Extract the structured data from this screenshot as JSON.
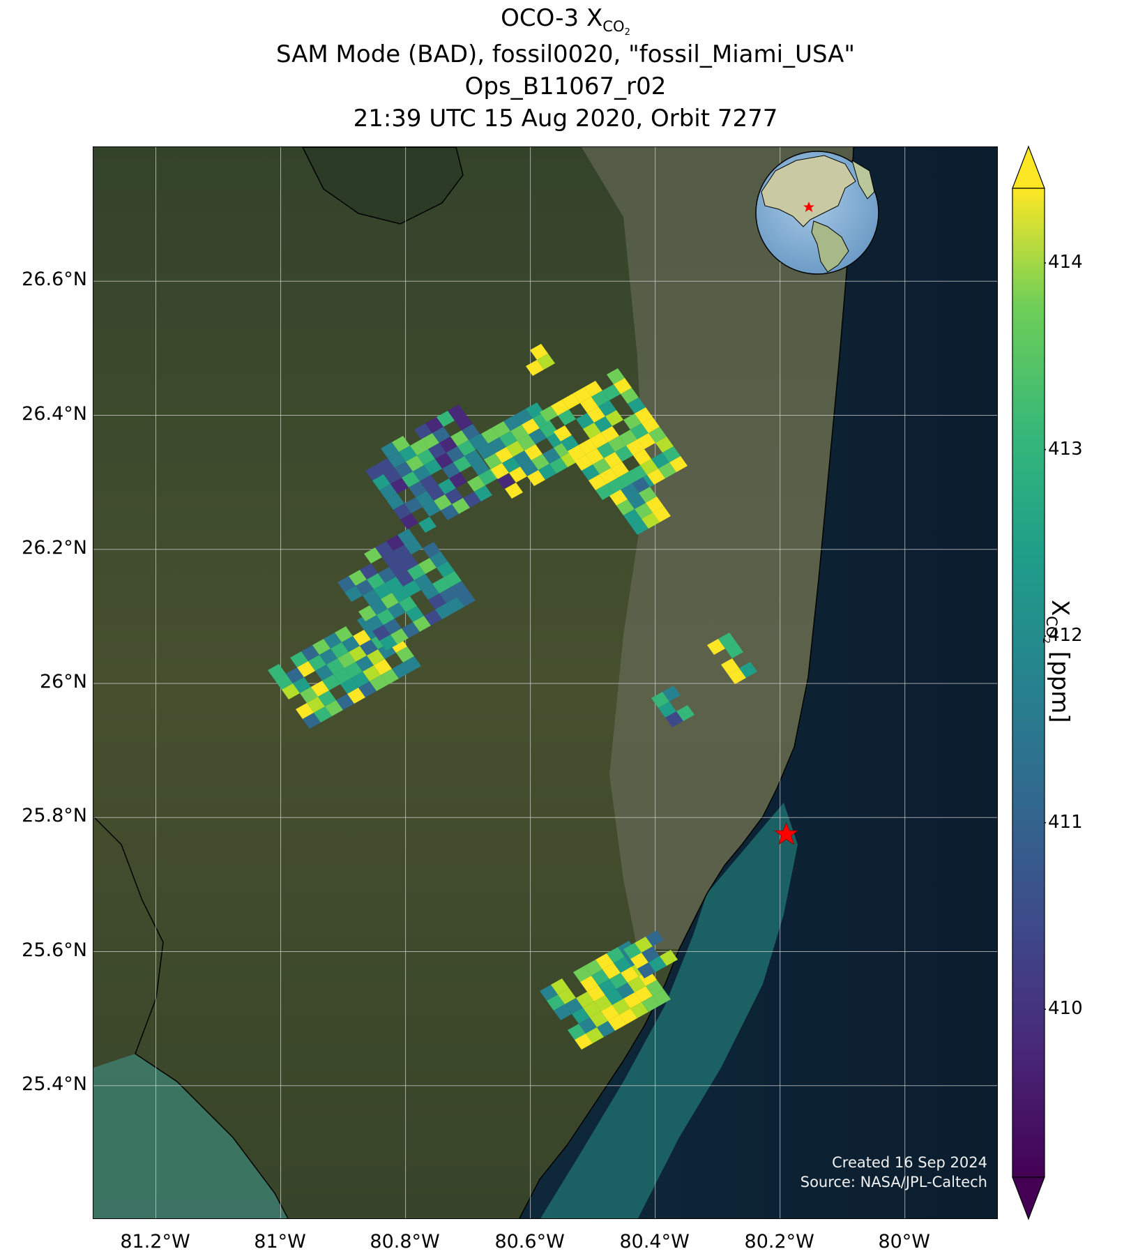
{
  "title": {
    "line1_prefix": "OCO-3 X",
    "line1_sub": "CO",
    "line1_sub2": "2",
    "line2": "SAM Mode (BAD), fossil0020, \"fossil_Miami_USA\"",
    "line3": "Ops_B11067_r02",
    "line4": "21:39 UTC 15 Aug 2020, Orbit 7277"
  },
  "axes": {
    "lat_ticks": [
      "26.6°N",
      "26.4°N",
      "26.2°N",
      "26°N",
      "25.8°N",
      "25.6°N",
      "25.4°N"
    ],
    "lon_ticks": [
      "81.2°W",
      "81°W",
      "80.8°W",
      "80.6°W",
      "80.4°W",
      "80.2°W",
      "80°W"
    ],
    "lat_values": [
      26.6,
      26.4,
      26.2,
      26.0,
      25.8,
      25.6,
      25.4
    ],
    "lon_values": [
      -81.2,
      -81.0,
      -80.8,
      -80.6,
      -80.4,
      -80.2,
      -80.0
    ],
    "lat_range": [
      25.2,
      26.8
    ],
    "lon_range": [
      -81.3,
      -79.85
    ]
  },
  "colorbar": {
    "label_prefix": "X",
    "label_sub": "CO",
    "label_sub2": "2",
    "label_suffix": " [ppm]",
    "ticks": [
      "414",
      "413",
      "412",
      "411",
      "410"
    ],
    "tick_values": [
      414,
      413,
      412,
      411,
      410
    ],
    "range": [
      409.1,
      414.4
    ],
    "colormap": "viridis",
    "extend": "both"
  },
  "site_marker": {
    "lon": -80.19,
    "lat": 25.775,
    "color": "#ff0000",
    "icon": "star-icon"
  },
  "credit": {
    "line1": "Created 16 Sep 2024",
    "line2": "Source: NASA/JPL-Caltech"
  },
  "inset_globe": {
    "icon": "globe-icon",
    "marker_color": "#ff0000"
  },
  "colors": {
    "land": "#3d4a2a",
    "ocean": "#0d2033",
    "coast_shallow": "#1f6b6b",
    "urban": "#7b7a68"
  }
}
